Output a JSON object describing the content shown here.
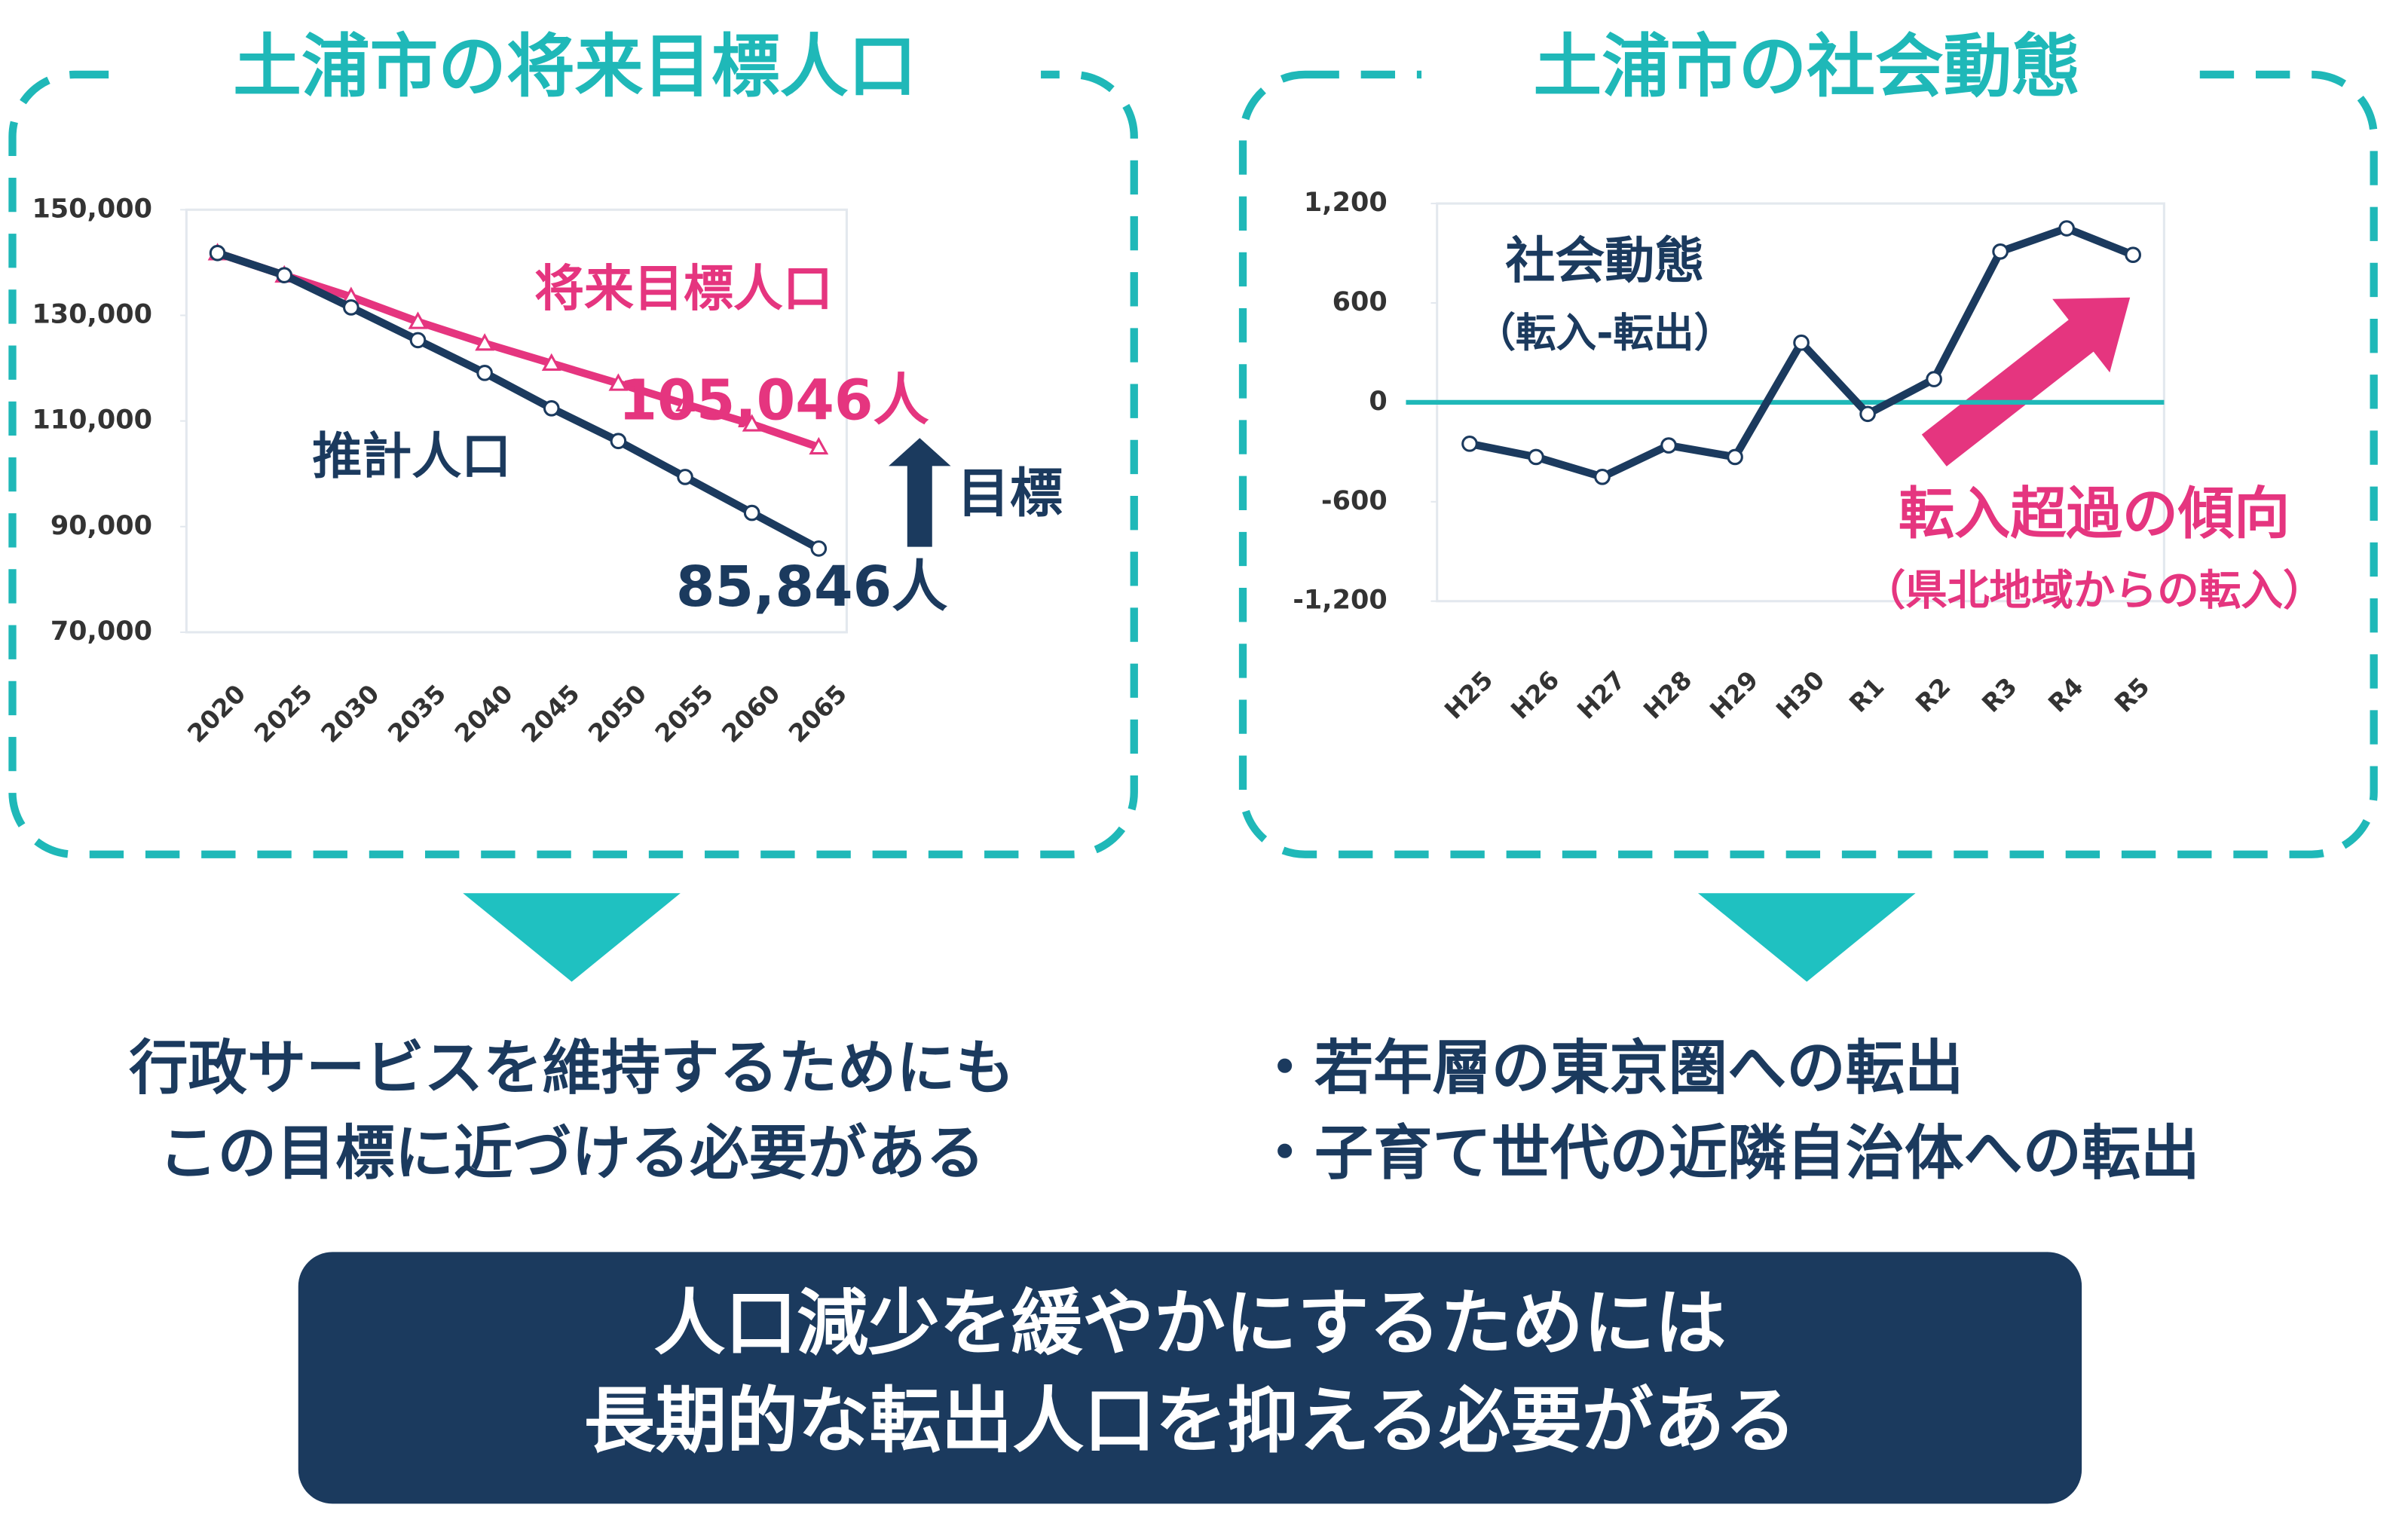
{
  "chart_data": [
    {
      "type": "line",
      "title": "土浦市の将来目標人口",
      "categories": [
        "2020",
        "2025",
        "2030",
        "2035",
        "2040",
        "2045",
        "2050",
        "2055",
        "2060",
        "2065"
      ],
      "series": [
        {
          "name": "将来目標人口",
          "color": "#e5357f",
          "marker": "triangle",
          "values": [
            141800,
            137600,
            133500,
            128800,
            124700,
            120900,
            117100,
            113200,
            109400,
            105046
          ],
          "value_labels": [
            null,
            null,
            null,
            null,
            null,
            null,
            null,
            null,
            null,
            "105,046人"
          ]
        },
        {
          "name": "推計人口",
          "color": "#1b3a5e",
          "marker": "circle",
          "values": [
            141800,
            137600,
            131500,
            125300,
            119100,
            112400,
            106200,
            99400,
            92600,
            85846
          ],
          "value_labels": [
            null,
            null,
            null,
            null,
            null,
            null,
            null,
            null,
            null,
            "85,846人"
          ]
        }
      ],
      "ylim": [
        70000,
        150000
      ],
      "yticks": [
        {
          "value": 70000,
          "label": "70,000"
        },
        {
          "value": 90000,
          "label": "90,000"
        },
        {
          "value": 110000,
          "label": "110,000"
        },
        {
          "value": 130000,
          "label": "130,000"
        },
        {
          "value": 150000,
          "label": "150,000"
        }
      ],
      "annotations": [
        "目標"
      ]
    },
    {
      "type": "line",
      "title": "土浦市の社会動態",
      "subtitle": "（転入-転出）",
      "categories": [
        "H25",
        "H26",
        "H27",
        "H28",
        "H29",
        "H30",
        "R1",
        "R2",
        "R3",
        "R4",
        "R5"
      ],
      "series": [
        {
          "name": "社会動態",
          "color": "#1b3a5e",
          "marker": "circle",
          "values": [
            -250,
            -330,
            -450,
            -260,
            -330,
            360,
            -70,
            140,
            910,
            1050,
            890
          ]
        }
      ],
      "ylim": [
        -1200,
        1200
      ],
      "yticks": [
        {
          "value": -1200,
          "label": "-1,200"
        },
        -600,
        0,
        600,
        {
          "value": 1200,
          "label": "1,200"
        }
      ],
      "zero_line": true,
      "annotations": [
        "転入超過の傾向",
        "（県北地域からの転入）"
      ]
    }
  ],
  "left_note": {
    "lines": [
      "行政サービスを維持するためにも",
      "この目標に近づける必要がある"
    ]
  },
  "right_note": {
    "items": [
      "・若年層の東京圏への転出",
      "・子育て世代の近隣自治体への転出"
    ]
  },
  "conclusion": {
    "lines": [
      "人口減少を緩やかにするためには",
      "長期的な転出人口を抑える必要がある"
    ]
  }
}
